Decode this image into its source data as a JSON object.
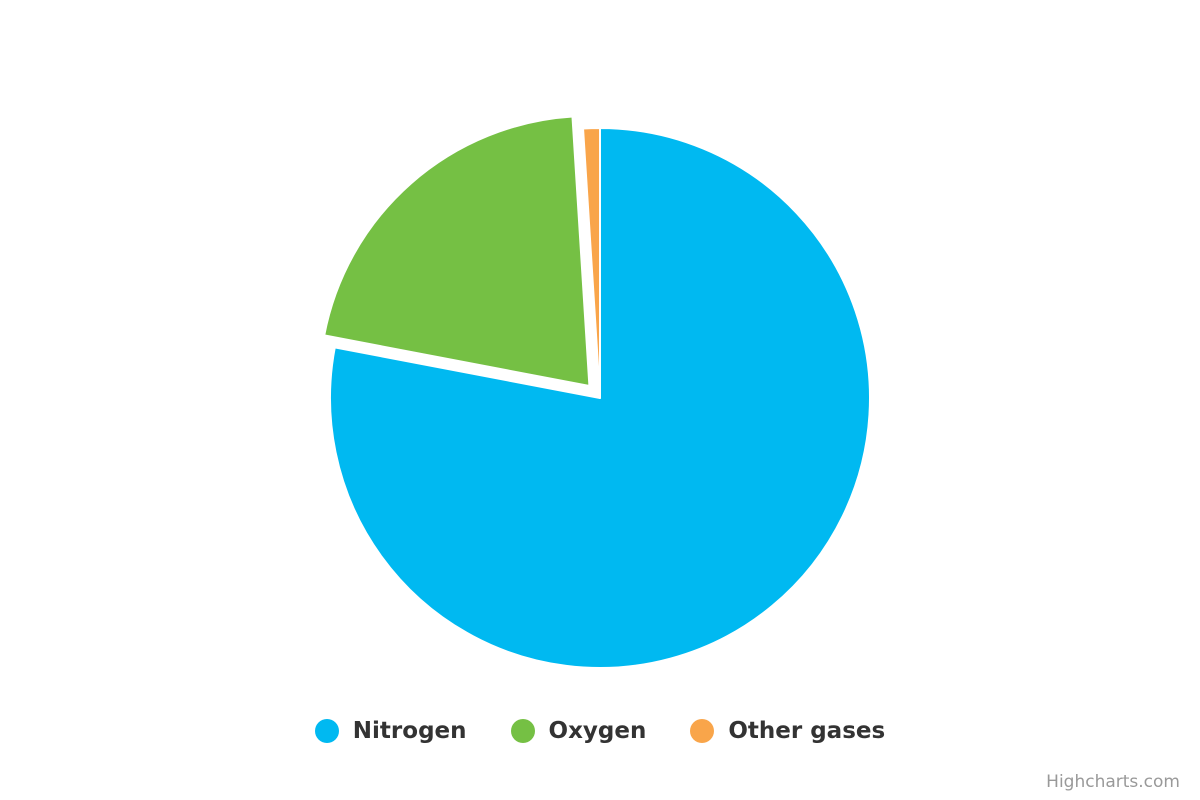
{
  "chart_data": {
    "type": "pie",
    "title": "",
    "start_angle_deg": 0,
    "sliced": [
      "Oxygen"
    ],
    "legend_position": "bottom-center",
    "slices": [
      {
        "name": "Nitrogen",
        "value": 78,
        "color": "#00b9f1"
      },
      {
        "name": "Oxygen",
        "value": 21,
        "color": "#75c044"
      },
      {
        "name": "Other gases",
        "value": 1,
        "color": "#f9a54a"
      }
    ]
  },
  "credits": {
    "text": "Highcharts.com"
  }
}
